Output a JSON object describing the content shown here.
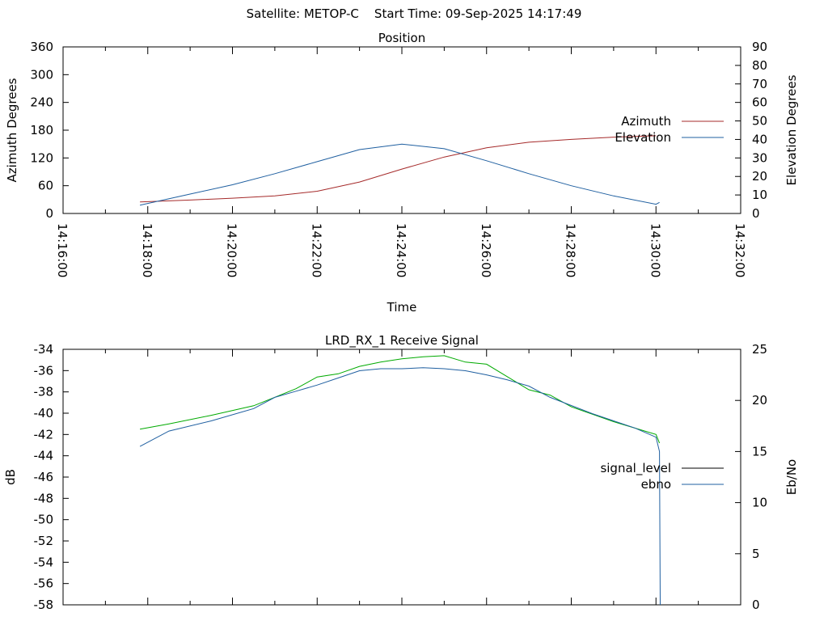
{
  "header": {
    "title": "Satellite: METOP-C    Start Time: 09-Sep-2025 14:17:49"
  },
  "chart_data": [
    {
      "type": "line",
      "title": "Position",
      "xlabel": "Time",
      "ylabel": "Azimuth Degrees",
      "y2label": "Elevation Degrees",
      "xlim": [
        "14:16:00",
        "14:32:00"
      ],
      "xticks": [
        "14:16:00",
        "14:18:00",
        "14:20:00",
        "14:22:00",
        "14:24:00",
        "14:26:00",
        "14:28:00",
        "14:30:00",
        "14:32:00"
      ],
      "ylim": [
        0,
        360
      ],
      "yticks": [
        "0",
        "60",
        "120",
        "180",
        "240",
        "300",
        "360"
      ],
      "y2lim": [
        0,
        90
      ],
      "y2ticks": [
        "0",
        "10",
        "20",
        "30",
        "40",
        "50",
        "60",
        "70",
        "80",
        "90"
      ],
      "legend_position": "right",
      "grid": false,
      "series": [
        {
          "name": "Azimuth",
          "axis": "left",
          "color": "#a52a2a",
          "x": [
            "14:17:49",
            "14:19:00",
            "14:20:00",
            "14:21:00",
            "14:22:00",
            "14:23:00",
            "14:24:00",
            "14:25:00",
            "14:26:00",
            "14:27:00",
            "14:28:00",
            "14:29:00",
            "14:30:00"
          ],
          "y": [
            25,
            29,
            33,
            38,
            48,
            68,
            96,
            122,
            142,
            154,
            160,
            165,
            168
          ]
        },
        {
          "name": "Elevation",
          "axis": "right",
          "color": "#1f5fa0",
          "x": [
            "14:17:49",
            "14:19:00",
            "14:20:00",
            "14:21:00",
            "14:22:00",
            "14:23:00",
            "14:24:00",
            "14:25:00",
            "14:26:00",
            "14:27:00",
            "14:28:00",
            "14:29:00",
            "14:30:00",
            "14:30:05"
          ],
          "y": [
            4.5,
            10.5,
            15.5,
            21.5,
            28,
            34.5,
            37.5,
            35,
            28.5,
            21.5,
            15,
            9.5,
            5,
            6
          ]
        }
      ]
    },
    {
      "type": "line",
      "title": "LRD_RX_1 Receive Signal",
      "ylabel": "dB",
      "y2label": "Eb/No",
      "ylim": [
        -58,
        -34
      ],
      "yticks": [
        "-34",
        "-36",
        "-38",
        "-40",
        "-42",
        "-44",
        "-46",
        "-48",
        "-50",
        "-52",
        "-54",
        "-56",
        "-58"
      ],
      "y2lim": [
        0,
        25
      ],
      "y2ticks": [
        "0",
        "5",
        "10",
        "15",
        "20",
        "25"
      ],
      "legend_position": "right",
      "grid": false,
      "series": [
        {
          "name": "signal_level",
          "axis": "left",
          "color": "#00aa00",
          "x": [
            "14:17:49",
            "14:18:30",
            "14:19:30",
            "14:20:30",
            "14:21:00",
            "14:21:30",
            "14:22:00",
            "14:22:30",
            "14:23:00",
            "14:23:30",
            "14:24:00",
            "14:24:30",
            "14:25:00",
            "14:25:30",
            "14:26:00",
            "14:26:30",
            "14:27:00",
            "14:27:30",
            "14:28:00",
            "14:28:30",
            "14:29:00",
            "14:29:30",
            "14:30:00",
            "14:30:05"
          ],
          "y": [
            -41.5,
            -41.0,
            -40.2,
            -39.3,
            -38.5,
            -37.7,
            -36.6,
            -36.3,
            -35.6,
            -35.2,
            -34.9,
            -34.7,
            -34.6,
            -35.2,
            -35.4,
            -36.6,
            -37.8,
            -38.3,
            -39.4,
            -40.1,
            -40.8,
            -41.4,
            -42.0,
            -42.8
          ]
        },
        {
          "name": "ebno",
          "axis": "right",
          "color": "#1f5fa0",
          "x": [
            "14:17:49",
            "14:18:30",
            "14:19:30",
            "14:20:30",
            "14:21:00",
            "14:21:30",
            "14:22:00",
            "14:22:30",
            "14:23:00",
            "14:23:30",
            "14:24:00",
            "14:24:30",
            "14:25:00",
            "14:25:30",
            "14:26:00",
            "14:26:30",
            "14:27:00",
            "14:27:30",
            "14:28:00",
            "14:28:30",
            "14:29:00",
            "14:29:30",
            "14:30:00",
            "14:30:05",
            "14:30:06"
          ],
          "y": [
            15.5,
            17.0,
            18.0,
            19.2,
            20.3,
            20.9,
            21.5,
            22.2,
            22.9,
            23.1,
            23.1,
            23.2,
            23.1,
            22.9,
            22.5,
            22.0,
            21.4,
            20.3,
            19.5,
            18.7,
            18.0,
            17.3,
            16.4,
            15.0,
            0
          ]
        }
      ]
    }
  ]
}
